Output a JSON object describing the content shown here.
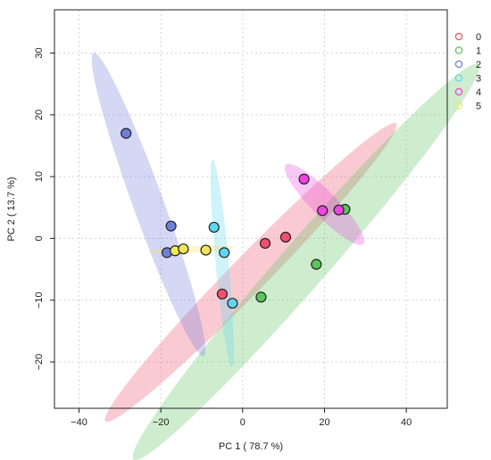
{
  "chart_data": {
    "type": "scatter",
    "xlabel": "PC 1 ( 78.7 %)",
    "ylabel": "PC 2 ( 13.7 %)",
    "xlim": [
      -46,
      50
    ],
    "ylim": [
      -27.5,
      37
    ],
    "xticks": [
      -40,
      -20,
      0,
      20,
      40
    ],
    "yticks": [
      -20,
      -10,
      0,
      10,
      20,
      30
    ],
    "grid": true,
    "legend_position": "right",
    "series": [
      {
        "name": "0",
        "color": "#f0506e",
        "points": [
          [
            -5,
            -9
          ],
          [
            5.5,
            -0.8
          ],
          [
            10.5,
            0.2
          ]
        ],
        "ellipse": {
          "center": [
            2,
            -5.5
          ],
          "semi_major": 43,
          "semi_minor": 3.5,
          "angle_deg": 34
        }
      },
      {
        "name": "1",
        "color": "#5cc45c",
        "points": [
          [
            4.5,
            -9.5
          ],
          [
            18,
            -4.2
          ],
          [
            25,
            4.7
          ]
        ],
        "ellipse": {
          "center": [
            15.5,
            -3.8
          ],
          "semi_major": 53,
          "semi_minor": 4.6,
          "angle_deg": 37
        }
      },
      {
        "name": "2",
        "color": "#6f7fd9",
        "points": [
          [
            -28.5,
            17
          ],
          [
            -17.5,
            2
          ],
          [
            -18.5,
            -2.3
          ]
        ],
        "ellipse": {
          "center": [
            -23,
            5.5
          ],
          "semi_major": 28,
          "semi_minor": 3.5,
          "angle_deg": -61
        }
      },
      {
        "name": "3",
        "color": "#5fd6ef",
        "points": [
          [
            -7,
            1.8
          ],
          [
            -4.5,
            -2.3
          ],
          [
            -2.5,
            -10.5
          ]
        ],
        "ellipse": {
          "center": [
            -5,
            -4
          ],
          "semi_major": 17,
          "semi_minor": 1.6,
          "angle_deg": -82
        }
      },
      {
        "name": "4",
        "color": "#ec45e0",
        "points": [
          [
            15,
            9.6
          ],
          [
            19.5,
            4.5
          ],
          [
            23.5,
            4.6
          ]
        ],
        "ellipse": {
          "center": [
            20,
            5.5
          ],
          "semi_major": 11.5,
          "semi_minor": 2.4,
          "angle_deg": -33
        }
      },
      {
        "name": "5",
        "color": "#f2e65a",
        "points": [
          [
            -16.5,
            -2
          ],
          [
            -14.5,
            -1.7
          ],
          [
            -9,
            -1.9
          ]
        ],
        "ellipse": {
          "center": [
            -12.5,
            -1.8
          ],
          "semi_major": 10.5,
          "semi_minor": 0.55,
          "angle_deg": 2
        }
      }
    ]
  }
}
